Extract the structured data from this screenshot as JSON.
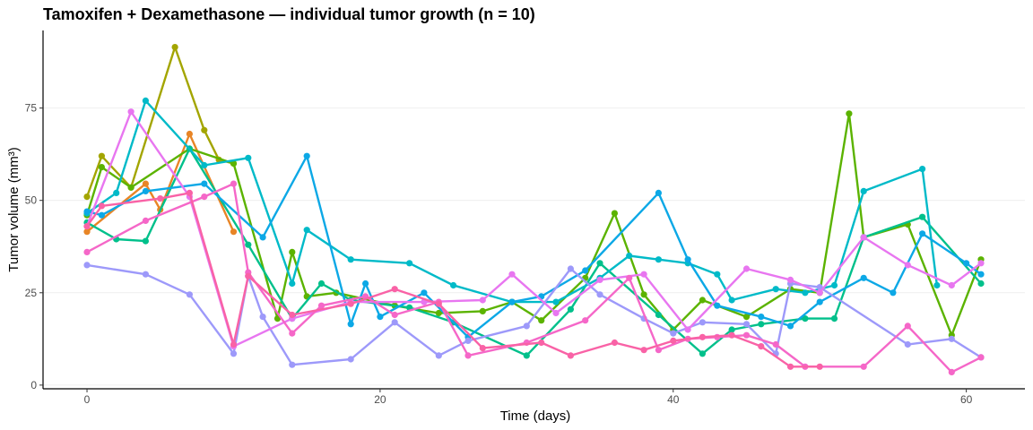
{
  "chart_data": {
    "type": "line",
    "title": "Tamoxifen + Dexamethasone — individual tumor growth (n = 10)",
    "xlabel": "Time (days)",
    "ylabel": "Tumor volume (mm³)",
    "xlim": [
      -3,
      64
    ],
    "ylim": [
      -1,
      96
    ],
    "xticks": [
      0,
      20,
      40,
      60
    ],
    "yticks": [
      0,
      25,
      50,
      75
    ],
    "grid": "horizontal",
    "legend": "none",
    "series": [
      {
        "color": "#E88526",
        "x": [
          0,
          4,
          5,
          7,
          10
        ],
        "y": [
          41.5,
          54.5,
          47.5,
          68,
          41.5
        ]
      },
      {
        "color": "#A3A500",
        "x": [
          0,
          1,
          3,
          6,
          8,
          9,
          10
        ],
        "y": [
          51,
          62,
          53.5,
          91.5,
          69,
          61,
          60
        ]
      },
      {
        "color": "#5BB300",
        "x": [
          0,
          1,
          3,
          7,
          10,
          13,
          14,
          15,
          17,
          21,
          24,
          27,
          29,
          31,
          34,
          36,
          38,
          40,
          42,
          45,
          48,
          50,
          52,
          53,
          56,
          59,
          61
        ],
        "y": [
          46,
          59,
          53.5,
          64,
          60,
          18,
          36,
          24,
          25,
          21.5,
          19.5,
          20,
          22.5,
          17.5,
          29,
          46.5,
          24.5,
          15,
          23,
          18.5,
          26,
          25,
          73.5,
          40,
          43.5,
          13.5,
          34
        ]
      },
      {
        "color": "#00C08B",
        "x": [
          0,
          2,
          4,
          7,
          11,
          14,
          16,
          18,
          22,
          25,
          30,
          33,
          35,
          39,
          42,
          44,
          46,
          49,
          51,
          53,
          57,
          61
        ],
        "y": [
          44,
          39.5,
          39,
          64,
          38,
          18,
          27.5,
          23,
          21,
          17,
          8,
          20.5,
          33,
          19,
          8.5,
          15,
          16.5,
          18,
          18,
          40,
          45.5,
          27.5
        ]
      },
      {
        "color": "#00BAC8",
        "x": [
          0,
          2,
          4,
          8,
          11,
          14,
          15,
          18,
          22,
          25,
          29,
          32,
          35,
          37,
          39,
          41,
          43,
          44,
          47,
          49,
          51,
          53,
          57,
          58
        ],
        "y": [
          46.5,
          52,
          77,
          59.5,
          61.5,
          27.5,
          42,
          34,
          33,
          27,
          22.5,
          22.5,
          29,
          35,
          34,
          33,
          30,
          23,
          26,
          25,
          27,
          52.5,
          58.5,
          27
        ]
      },
      {
        "color": "#0CA8E6",
        "x": [
          0,
          1,
          4,
          8,
          12,
          15,
          18,
          19,
          20,
          23,
          26,
          29,
          31,
          34,
          39,
          41,
          43,
          46,
          48,
          50,
          53,
          55,
          57,
          60,
          61
        ],
        "y": [
          47,
          46,
          52.5,
          54.5,
          40,
          62,
          16.5,
          27.5,
          18.5,
          25,
          13,
          22.5,
          24,
          31,
          52,
          34,
          21.5,
          18.5,
          16,
          22.5,
          29,
          25,
          41,
          33,
          30
        ]
      },
      {
        "color": "#9D99FA",
        "x": [
          0,
          4,
          7,
          10,
          11,
          12,
          14,
          18,
          21,
          24,
          26,
          30,
          33,
          35,
          38,
          40,
          42,
          45,
          47,
          48,
          50,
          56,
          59,
          61
        ],
        "y": [
          32.5,
          30,
          24.5,
          8.5,
          29.5,
          18.5,
          5.5,
          7,
          17,
          8,
          12,
          16,
          31.5,
          24.5,
          18,
          14,
          17,
          16.5,
          8.5,
          27.5,
          26.5,
          11,
          12.5,
          7.5
        ]
      },
      {
        "color": "#E876F0",
        "x": [
          0,
          3,
          7,
          10,
          14,
          18,
          23,
          27,
          29,
          32,
          35,
          38,
          41,
          45,
          48,
          50,
          53,
          56,
          59,
          61
        ],
        "y": [
          43,
          74,
          51,
          10.5,
          18,
          22.5,
          22.5,
          23,
          30,
          19.5,
          28.5,
          30,
          15,
          31.5,
          28.5,
          25,
          40,
          32.5,
          27,
          33
        ]
      },
      {
        "color": "#F567C8",
        "x": [
          0,
          4,
          8,
          10,
          11,
          14,
          16,
          19,
          21,
          24,
          26,
          30,
          34,
          37,
          39,
          41,
          43,
          45,
          47,
          49,
          53,
          56,
          59,
          61
        ],
        "y": [
          36,
          44.5,
          51,
          54.5,
          30.5,
          14,
          21.5,
          24,
          19,
          22.5,
          8,
          11.5,
          17.5,
          29,
          9.5,
          12.5,
          13,
          13.5,
          11,
          5,
          5,
          16,
          3.5,
          7.5
        ]
      },
      {
        "color": "#F962A6",
        "x": [
          0,
          1,
          5,
          7,
          10,
          11,
          14,
          18,
          21,
          24,
          27,
          31,
          33,
          36,
          38,
          40,
          42,
          44,
          46,
          48,
          50
        ],
        "y": [
          43,
          48.5,
          50.5,
          52,
          11,
          29.5,
          19,
          22,
          26,
          22,
          10,
          11.5,
          8,
          11.5,
          9.5,
          12,
          13,
          13.5,
          10.5,
          5,
          5
        ]
      }
    ]
  }
}
